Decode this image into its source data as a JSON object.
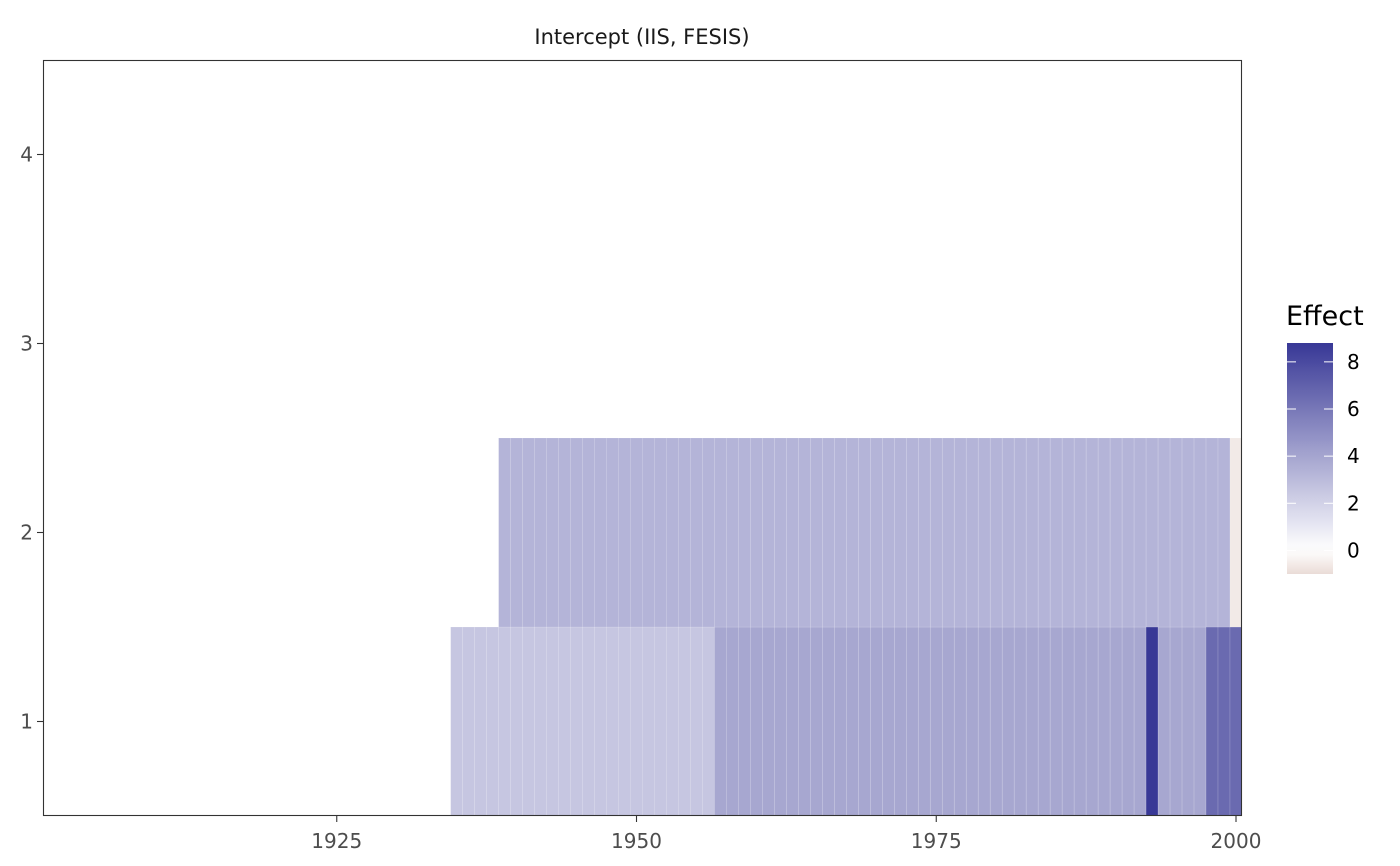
{
  "chart_data": {
    "type": "heatmap",
    "title": "Intercept (IIS, FESIS)",
    "xlabel": "",
    "ylabel": "",
    "xlim": [
      1900.5,
      2000.5
    ],
    "ylim": [
      0.5,
      4.5
    ],
    "x_ticks": [
      1925,
      1950,
      1975,
      2000
    ],
    "x_tick_labels": [
      "1925",
      "1950",
      "1975",
      "2000"
    ],
    "y_ticks": [
      1,
      2,
      3,
      4
    ],
    "y_tick_labels": [
      "1",
      "2",
      "3",
      "4"
    ],
    "grid": false,
    "legend": {
      "title": "Effect",
      "position": "right",
      "range": [
        -1,
        8.8
      ],
      "ticks": [
        0,
        2,
        4,
        6,
        8
      ],
      "tick_labels": [
        "0",
        "2",
        "4",
        "6",
        "8"
      ],
      "colors": {
        "low": "#EADCD7",
        "mid": "#FFFFFF",
        "high": "#383896"
      }
    },
    "segments": [
      {
        "y": 1,
        "x_start": 1935,
        "x_end": 1956,
        "value": 2.5
      },
      {
        "y": 1,
        "x_start": 1957,
        "x_end": 1992,
        "value": 3.9
      },
      {
        "y": 1,
        "x_start": 1993,
        "x_end": 1993,
        "value": 8.8
      },
      {
        "y": 1,
        "x_start": 1994,
        "x_end": 1997,
        "value": 3.9
      },
      {
        "y": 1,
        "x_start": 1998,
        "x_end": 2000,
        "value": 6.6
      },
      {
        "y": 2,
        "x_start": 1939,
        "x_end": 1999,
        "value": 3.3
      },
      {
        "y": 2,
        "x_start": 2000,
        "x_end": 2000,
        "value": -0.6
      }
    ]
  }
}
